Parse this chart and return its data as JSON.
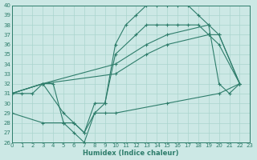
{
  "xlabel": "Humidex (Indice chaleur)",
  "bg_color": "#cce8e5",
  "line_color": "#2e7d6b",
  "grid_color": "#aad4ce",
  "xlim": [
    0,
    23
  ],
  "ylim": [
    26,
    40
  ],
  "ytick_vals": [
    26,
    27,
    28,
    29,
    30,
    31,
    32,
    33,
    34,
    35,
    36,
    37,
    38,
    39,
    40
  ],
  "xtick_vals": [
    0,
    1,
    2,
    3,
    4,
    5,
    6,
    7,
    8,
    9,
    10,
    11,
    12,
    13,
    14,
    15,
    16,
    17,
    18,
    19,
    20,
    21,
    22,
    23
  ],
  "lines": [
    {
      "x": [
        0,
        1,
        2,
        3,
        4,
        5,
        6,
        7,
        8,
        9,
        10,
        11,
        12,
        13,
        14,
        15,
        16,
        17,
        18,
        19,
        20,
        21,
        22
      ],
      "y": [
        31,
        31,
        31,
        32,
        32,
        28,
        27,
        26,
        29,
        30,
        36,
        38,
        39,
        40,
        40,
        40,
        40,
        40,
        39,
        38,
        32,
        31,
        32
      ]
    },
    {
      "x": [
        0,
        3,
        5,
        6,
        7,
        8,
        9,
        10,
        12,
        13,
        14,
        15,
        16,
        17,
        18,
        19,
        20,
        22
      ],
      "y": [
        31,
        32,
        29,
        28,
        27,
        30,
        30,
        35,
        37,
        38,
        38,
        38,
        38,
        38,
        38,
        37,
        37,
        32
      ]
    },
    {
      "x": [
        0,
        3,
        10,
        13,
        15,
        19,
        20,
        22
      ],
      "y": [
        31,
        32,
        34,
        36,
        37,
        38,
        37,
        32
      ]
    },
    {
      "x": [
        0,
        3,
        10,
        13,
        15,
        19,
        20,
        22
      ],
      "y": [
        31,
        32,
        33,
        35,
        36,
        37,
        36,
        32
      ]
    },
    {
      "x": [
        0,
        3,
        5,
        6,
        7,
        8,
        9,
        10,
        15,
        20,
        22
      ],
      "y": [
        29,
        28,
        28,
        28,
        27,
        29,
        29,
        29,
        30,
        31,
        32
      ]
    }
  ]
}
